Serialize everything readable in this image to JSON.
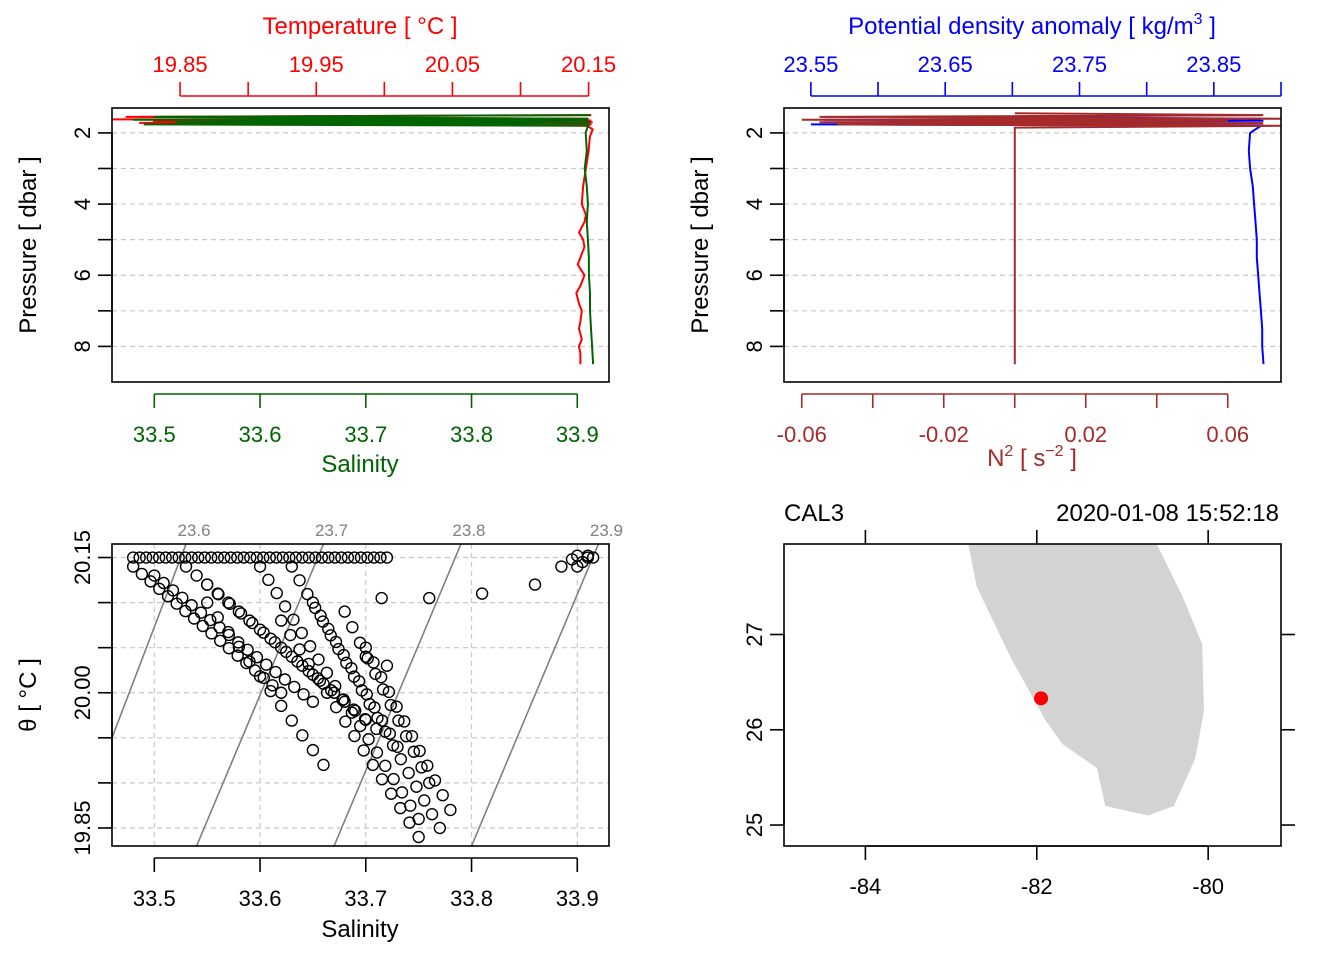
{
  "colors": {
    "temperature": "#ff0000",
    "salinity": "#006400",
    "density": "#0000ff",
    "n2": "#a52a2a",
    "land": "#d3d3d3",
    "station": "#ff0000",
    "isopycnal": "#808080"
  },
  "chart_data": [
    {
      "type": "line",
      "panel": "temperature-salinity-profile",
      "title_top": "Temperature [ °C ]",
      "xlabel": "Salinity",
      "ylabel": "Pressure [ dbar ]",
      "top_axis": {
        "label": "Temperature [ °C ]",
        "ticks": [
          "19.85",
          "19.95",
          "20.05",
          "20.15"
        ],
        "tick_values": [
          19.85,
          19.95,
          20.05,
          20.15
        ],
        "minor_values": [
          19.9,
          20.0,
          20.1
        ],
        "range": [
          19.8,
          20.165
        ]
      },
      "bottom_axis": {
        "label": "Salinity",
        "ticks": [
          "33.5",
          "33.6",
          "33.7",
          "33.8",
          "33.9"
        ],
        "tick_values": [
          33.5,
          33.6,
          33.7,
          33.8,
          33.9
        ],
        "range": [
          33.46,
          33.93
        ]
      },
      "y_axis": {
        "ticks": [
          "2",
          "4",
          "6",
          "8"
        ],
        "tick_values": [
          2,
          4,
          6,
          8
        ],
        "range": [
          9,
          1.3
        ],
        "inverted": true
      },
      "grid": true,
      "series": [
        {
          "name": "Temperature",
          "axis": "top",
          "p": [
            1.5,
            1.55,
            1.6,
            1.62,
            1.65,
            1.68,
            1.7,
            1.72,
            1.75,
            1.8,
            1.9,
            2.1,
            2.5,
            3.0,
            3.5,
            4.0,
            4.3,
            4.5,
            4.8,
            5.0,
            5.2,
            5.5,
            5.7,
            6.0,
            6.3,
            6.5,
            6.8,
            7.0,
            7.3,
            7.5,
            7.8,
            8.0,
            8.2,
            8.5
          ],
          "v": [
            20.152,
            19.81,
            20.15,
            19.8,
            20.152,
            19.83,
            20.153,
            19.82,
            20.152,
            20.149,
            20.153,
            20.151,
            20.15,
            20.148,
            20.146,
            20.145,
            20.148,
            20.147,
            20.143,
            20.146,
            20.147,
            20.144,
            20.142,
            20.147,
            20.144,
            20.141,
            20.143,
            20.145,
            20.144,
            20.143,
            20.145,
            20.143,
            20.144,
            20.144
          ]
        },
        {
          "name": "Salinity",
          "axis": "bottom",
          "p": [
            1.5,
            1.55,
            1.6,
            1.63,
            1.66,
            1.7,
            1.73,
            1.76,
            1.8,
            2.0,
            2.5,
            3.0,
            3.5,
            4.0,
            4.5,
            5.0,
            5.5,
            6.0,
            6.5,
            7.0,
            7.5,
            8.0,
            8.5
          ],
          "v": [
            33.912,
            33.5,
            33.91,
            33.48,
            33.911,
            33.52,
            33.912,
            33.49,
            33.91,
            33.908,
            33.909,
            33.907,
            33.909,
            33.91,
            33.909,
            33.91,
            33.911,
            33.911,
            33.912,
            33.912,
            33.913,
            33.914,
            33.915
          ]
        }
      ]
    },
    {
      "type": "line",
      "panel": "density-n2-profile",
      "title_top": "Potential density anomaly [ kg/m³ ]",
      "xlabel": "N² [ s⁻² ]",
      "ylabel": "Pressure [ dbar ]",
      "top_axis": {
        "label": "Potential density anomaly [ kg/m",
        "label_sup": "3",
        "label_end": " ]",
        "ticks": [
          "23.55",
          "23.65",
          "23.75",
          "23.85"
        ],
        "tick_values": [
          23.55,
          23.65,
          23.75,
          23.85
        ],
        "minor_values": [
          23.6,
          23.7,
          23.8,
          23.9
        ],
        "range": [
          23.53,
          23.9
        ]
      },
      "bottom_axis": {
        "label": "N",
        "label_sup": "2",
        "label_mid": " [ s",
        "label_sup2": "−2",
        "label_end": " ]",
        "ticks": [
          "-0.06",
          "-0.02",
          "0.02",
          "0.06"
        ],
        "tick_values": [
          -0.06,
          -0.02,
          0.02,
          0.06
        ],
        "minor_values": [
          -0.04,
          0.0,
          0.04
        ],
        "range": [
          -0.065,
          0.075
        ]
      },
      "y_axis": {
        "ticks": [
          "2",
          "4",
          "6",
          "8"
        ],
        "tick_values": [
          2,
          4,
          6,
          8
        ],
        "range": [
          9,
          1.3
        ],
        "inverted": true
      },
      "grid": true,
      "series": [
        {
          "name": "Potential density anomaly",
          "axis": "top",
          "p": [
            1.5,
            1.55,
            1.6,
            1.63,
            1.66,
            1.7,
            1.73,
            1.76,
            1.8,
            2.0,
            2.5,
            3.0,
            3.5,
            4.0,
            4.5,
            5.0,
            5.5,
            6.0,
            6.5,
            7.0,
            7.5,
            8.0,
            8.5
          ],
          "v": [
            23.886,
            23.62,
            23.885,
            23.56,
            23.887,
            23.6,
            23.886,
            23.55,
            23.885,
            23.877,
            23.876,
            23.877,
            23.879,
            23.88,
            23.881,
            23.882,
            23.882,
            23.883,
            23.884,
            23.885,
            23.886,
            23.886,
            23.887
          ]
        },
        {
          "name": "N2",
          "axis": "bottom",
          "p": [
            1.45,
            1.5,
            1.55,
            1.6,
            1.63,
            1.66,
            1.7,
            1.73,
            1.76,
            1.8,
            1.85,
            1.9,
            3.0,
            4.0,
            5.0,
            6.0,
            7.0,
            7.5,
            8.0,
            8.5
          ],
          "v": [
            0.0,
            0.07,
            -0.055,
            0.075,
            -0.06,
            0.06,
            -0.055,
            0.07,
            -0.05,
            0.075,
            0.0,
            0.0,
            0.0,
            0.0,
            0.0,
            0.0,
            0.0,
            0.0,
            0.0,
            0.0
          ]
        }
      ]
    },
    {
      "type": "scatter",
      "panel": "ts-diagram",
      "xlabel": "Salinity",
      "ylabel": "θ [ °C ]",
      "x_axis": {
        "ticks": [
          "33.5",
          "33.6",
          "33.7",
          "33.8",
          "33.9"
        ],
        "tick_values": [
          33.5,
          33.6,
          33.7,
          33.8,
          33.9
        ],
        "range": [
          33.46,
          33.93
        ]
      },
      "y_axis": {
        "ticks": [
          "19.85",
          "20.00",
          "20.15"
        ],
        "tick_values": [
          19.85,
          20.0,
          20.15
        ],
        "minor_values": [
          19.9,
          19.95,
          20.05,
          20.1
        ],
        "range": [
          19.83,
          20.165
        ]
      },
      "isopycnals": [
        {
          "label": "23.6",
          "x_bottom": 33.46,
          "y_bottom": 19.95,
          "x_top": 33.53,
          "y_top": 20.165
        },
        {
          "label": "23.7",
          "x_bottom": 33.54,
          "y_bottom": 19.83,
          "x_top": 33.66,
          "y_top": 20.165
        },
        {
          "label": "23.8",
          "x_bottom": 33.67,
          "y_bottom": 19.83,
          "x_top": 33.79,
          "y_top": 20.165
        },
        {
          "label": "23.9",
          "x_bottom": 33.8,
          "y_bottom": 19.83,
          "x_top": 33.92,
          "y_top": 20.165
        }
      ],
      "clusters": [
        {
          "s_start": 33.48,
          "t_start": 20.15,
          "s_end": 33.72,
          "t_end": 20.15,
          "n": 40
        },
        {
          "s_start": 33.48,
          "t_start": 20.14,
          "s_end": 33.62,
          "t_end": 20.0,
          "n": 18
        },
        {
          "s_start": 33.5,
          "t_start": 20.13,
          "s_end": 33.65,
          "t_end": 19.99,
          "n": 18
        },
        {
          "s_start": 33.53,
          "t_start": 20.14,
          "s_end": 33.7,
          "t_end": 19.97,
          "n": 18
        },
        {
          "s_start": 33.55,
          "t_start": 20.12,
          "s_end": 33.71,
          "t_end": 19.96,
          "n": 16
        },
        {
          "s_start": 33.6,
          "t_start": 20.14,
          "s_end": 33.75,
          "t_end": 19.86,
          "n": 20
        },
        {
          "s_start": 33.63,
          "t_start": 20.14,
          "s_end": 33.77,
          "t_end": 19.85,
          "n": 20
        },
        {
          "s_start": 33.65,
          "t_start": 20.1,
          "s_end": 33.73,
          "t_end": 19.94,
          "n": 12
        },
        {
          "s_start": 33.62,
          "t_start": 20.08,
          "s_end": 33.75,
          "t_end": 19.84,
          "n": 16
        },
        {
          "s_start": 33.68,
          "t_start": 20.09,
          "s_end": 33.76,
          "t_end": 19.9,
          "n": 12
        },
        {
          "s_start": 33.55,
          "t_start": 20.1,
          "s_end": 33.66,
          "t_end": 19.92,
          "n": 12
        },
        {
          "s_start": 33.7,
          "t_start": 20.05,
          "s_end": 33.78,
          "t_end": 19.87,
          "n": 12
        }
      ],
      "points": [
        [
          33.91,
          20.15
        ],
        [
          33.9,
          20.14
        ],
        [
          33.905,
          20.145
        ],
        [
          33.91,
          20.152
        ],
        [
          33.895,
          20.148
        ],
        [
          33.915,
          20.15
        ],
        [
          33.9,
          20.152
        ],
        [
          33.885,
          20.14
        ],
        [
          33.86,
          20.12
        ],
        [
          33.81,
          20.11
        ],
        [
          33.76,
          20.105
        ],
        [
          33.715,
          20.105
        ],
        [
          33.7,
          20.04
        ],
        [
          33.72,
          20.03
        ]
      ]
    },
    {
      "type": "map",
      "panel": "station-map",
      "station_label": "CAL3",
      "datetime": "2020-01-08 15:52:18",
      "x_axis": {
        "ticks": [
          "-84",
          "-82",
          "-80"
        ],
        "tick_values": [
          -84,
          -82,
          -80
        ],
        "range": [
          -84.95,
          -79.15
        ]
      },
      "y_axis": {
        "ticks": [
          "25",
          "26",
          "27"
        ],
        "tick_values": [
          25,
          26,
          27
        ],
        "range": [
          24.78,
          27.95
        ]
      },
      "station": {
        "lon": -81.95,
        "lat": 26.33
      },
      "land": [
        [
          -82.8,
          27.95
        ],
        [
          -82.7,
          27.5
        ],
        [
          -82.3,
          26.75
        ],
        [
          -81.9,
          26.1
        ],
        [
          -81.7,
          25.85
        ],
        [
          -81.3,
          25.6
        ],
        [
          -81.2,
          25.2
        ],
        [
          -80.7,
          25.1
        ],
        [
          -80.4,
          25.2
        ],
        [
          -80.15,
          25.7
        ],
        [
          -80.05,
          26.2
        ],
        [
          -80.07,
          26.9
        ],
        [
          -80.3,
          27.4
        ],
        [
          -80.6,
          27.95
        ]
      ]
    }
  ]
}
